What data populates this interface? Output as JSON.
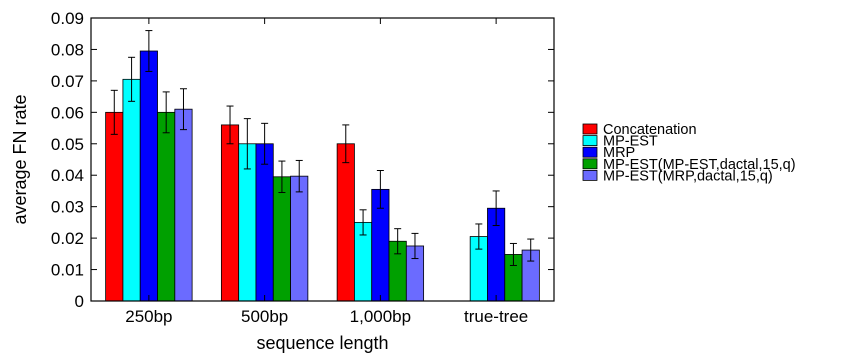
{
  "chart_data": {
    "type": "bar",
    "xlabel": "sequence length",
    "ylabel": "average FN rate",
    "ylim": [
      0,
      0.09
    ],
    "yticks": [
      "0",
      "0.01",
      "0.02",
      "0.03",
      "0.04",
      "0.05",
      "0.06",
      "0.07",
      "0.08",
      "0.09"
    ],
    "categories": [
      "250bp",
      "500bp",
      "1,000bp",
      "true-tree"
    ],
    "legend_position": "right",
    "grid": false,
    "error_bars": true,
    "series": [
      {
        "name": "Concatenation",
        "color": "#ff0000",
        "values": [
          0.06,
          0.056,
          0.05,
          null
        ],
        "err": [
          0.007,
          0.006,
          0.006,
          null
        ]
      },
      {
        "name": "MP-EST",
        "color": "#00ffff",
        "values": [
          0.0705,
          0.05,
          0.025,
          0.0205
        ],
        "err": [
          0.007,
          0.008,
          0.004,
          0.004
        ]
      },
      {
        "name": "MRP",
        "color": "#0000ff",
        "values": [
          0.0795,
          0.05,
          0.0355,
          0.0295
        ],
        "err": [
          0.0065,
          0.0065,
          0.006,
          0.0055
        ]
      },
      {
        "name": "MP-EST(MP-EST,dactal,15,q)",
        "color": "#00a000",
        "values": [
          0.06,
          0.0395,
          0.019,
          0.0148
        ],
        "err": [
          0.0065,
          0.005,
          0.004,
          0.0035
        ]
      },
      {
        "name": "MP-EST(MRP,dactal,15,q)",
        "color": "#6b6bff",
        "values": [
          0.061,
          0.0397,
          0.0175,
          0.0162
        ],
        "err": [
          0.0065,
          0.005,
          0.004,
          0.0035
        ]
      }
    ]
  }
}
